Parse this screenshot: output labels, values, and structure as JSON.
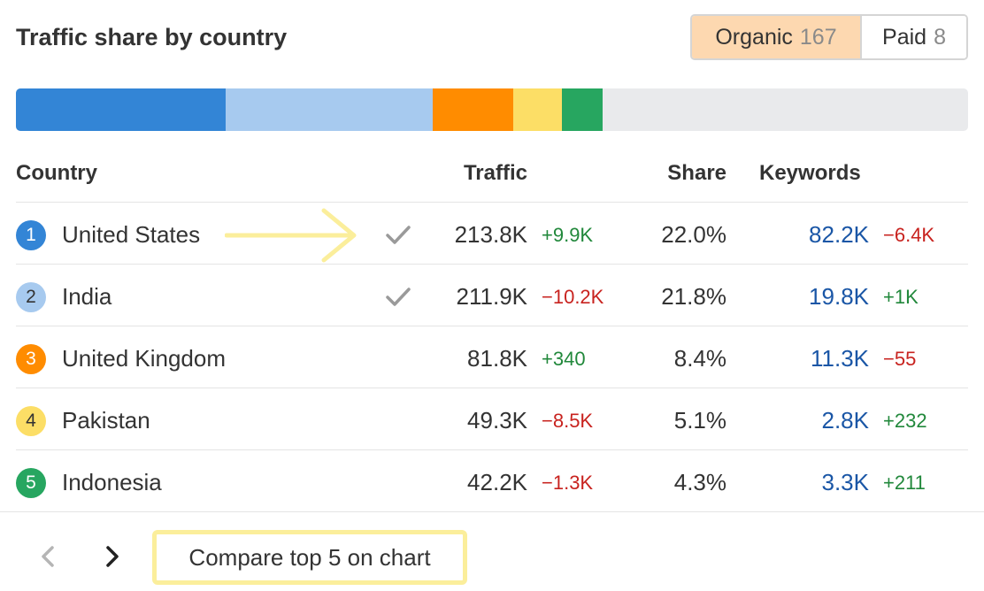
{
  "title": "Traffic share by country",
  "toggle": {
    "organic": {
      "label": "Organic",
      "count": "167"
    },
    "paid": {
      "label": "Paid",
      "count": "8"
    }
  },
  "share_bar": [
    {
      "country": "United States",
      "share": 0.22,
      "color": "#3385d6"
    },
    {
      "country": "India",
      "share": 0.218,
      "color": "#a7caef"
    },
    {
      "country": "United Kingdom",
      "share": 0.084,
      "color": "#ff8c00"
    },
    {
      "country": "Pakistan",
      "share": 0.051,
      "color": "#fcde66"
    },
    {
      "country": "Indonesia",
      "share": 0.043,
      "color": "#27a660"
    }
  ],
  "columns": {
    "country": "Country",
    "traffic": "Traffic",
    "share": "Share",
    "keywords": "Keywords"
  },
  "rows": [
    {
      "rank": "1",
      "country": "United States",
      "checked": true,
      "traffic": "213.8K",
      "traffic_delta": "+9.9K",
      "traffic_trend": "pos",
      "share": "22.0%",
      "keywords": "82.2K",
      "keywords_delta": "−6.4K",
      "keywords_trend": "neg",
      "badge_color": "#3385d6",
      "badge_text_color": "#ffffff"
    },
    {
      "rank": "2",
      "country": "India",
      "checked": true,
      "traffic": "211.9K",
      "traffic_delta": "−10.2K",
      "traffic_trend": "neg",
      "share": "21.8%",
      "keywords": "19.8K",
      "keywords_delta": "+1K",
      "keywords_trend": "pos",
      "badge_color": "#a7caef",
      "badge_text_color": "#333333"
    },
    {
      "rank": "3",
      "country": "United Kingdom",
      "checked": false,
      "traffic": "81.8K",
      "traffic_delta": "+340",
      "traffic_trend": "pos",
      "share": "8.4%",
      "keywords": "11.3K",
      "keywords_delta": "−55",
      "keywords_trend": "neg",
      "badge_color": "#ff8c00",
      "badge_text_color": "#ffffff"
    },
    {
      "rank": "4",
      "country": "Pakistan",
      "checked": false,
      "traffic": "49.3K",
      "traffic_delta": "−8.5K",
      "traffic_trend": "neg",
      "share": "5.1%",
      "keywords": "2.8K",
      "keywords_delta": "+232",
      "keywords_trend": "pos",
      "badge_color": "#fcde66",
      "badge_text_color": "#333333"
    },
    {
      "rank": "5",
      "country": "Indonesia",
      "checked": false,
      "traffic": "42.2K",
      "traffic_delta": "−1.3K",
      "traffic_trend": "neg",
      "share": "4.3%",
      "keywords": "3.3K",
      "keywords_delta": "+211",
      "keywords_trend": "pos",
      "badge_color": "#27a660",
      "badge_text_color": "#ffffff"
    }
  ],
  "footer": {
    "compare_label": "Compare top 5 on chart"
  },
  "icons": {
    "prev": "chevron-left-icon",
    "next": "chevron-right-icon",
    "check": "checkmark-icon",
    "annotation": "arrow-right-icon"
  }
}
